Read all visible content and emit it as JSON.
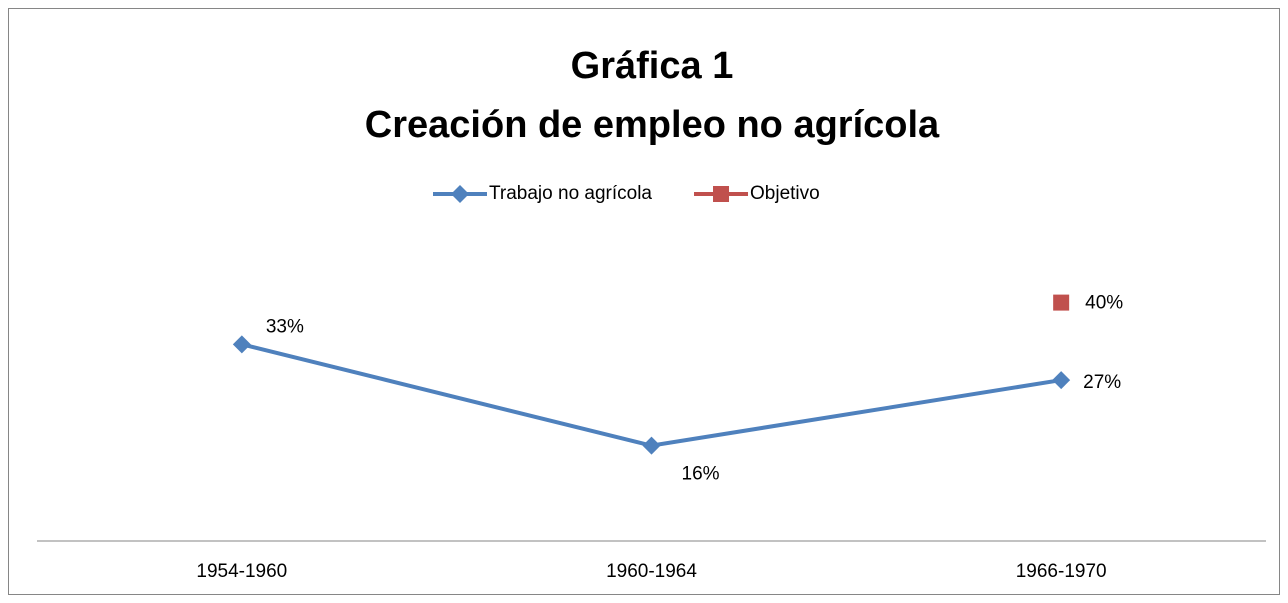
{
  "chart_data": {
    "type": "line",
    "title": "Gráfica 1",
    "subtitle": "Creación de empleo no agrícola",
    "categories": [
      "1954-1960",
      "1960-1964",
      "1966-1970"
    ],
    "series": [
      {
        "name": "Trabajo no agrícola",
        "color": "#4f81bd",
        "marker": "diamond",
        "values": [
          33,
          16,
          27
        ],
        "value_labels": [
          "33%",
          "16%",
          "27%"
        ]
      },
      {
        "name": "Objetivo",
        "color": "#c0504d",
        "marker": "square",
        "values": [
          null,
          null,
          40
        ],
        "value_labels": [
          null,
          null,
          "40%"
        ]
      }
    ],
    "ylim": [
      0,
      50
    ],
    "legend": "top"
  }
}
